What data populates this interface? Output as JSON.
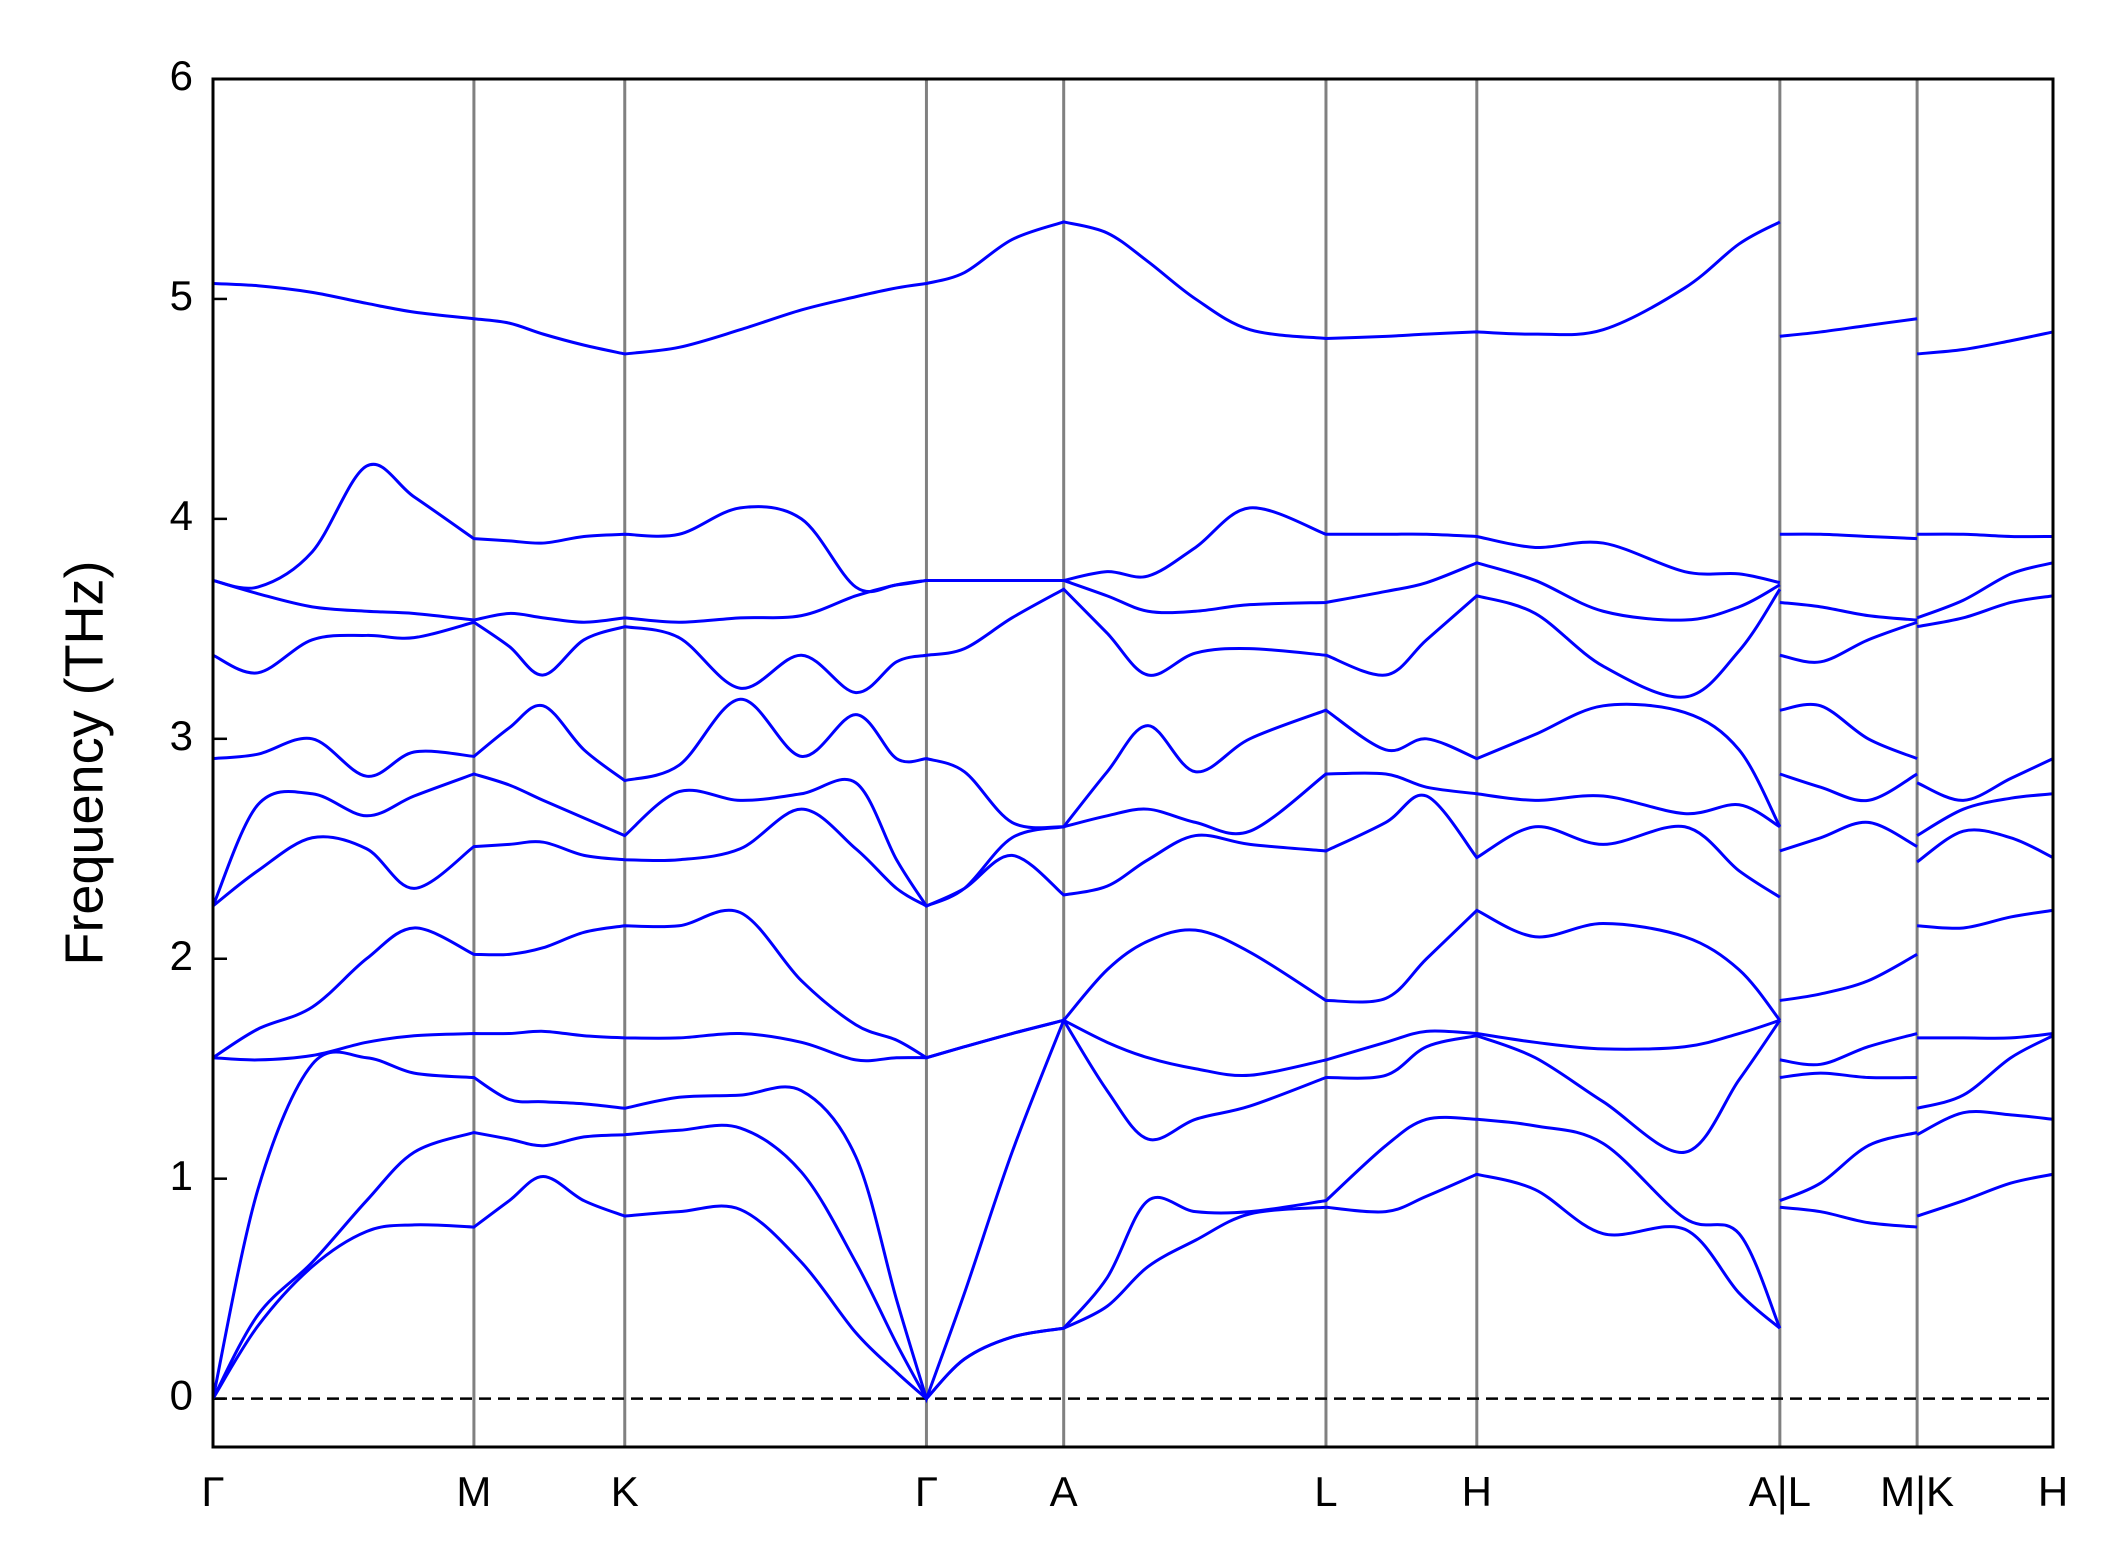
{
  "chart_data": {
    "type": "line",
    "ylabel": "Frequency (THz)",
    "color": "#0000ff",
    "hline": 0,
    "grid": true,
    "xlim": [
      0,
      13.54
    ],
    "ylim": [
      -0.22,
      6
    ],
    "yticks": [
      0,
      1,
      2,
      3,
      4,
      5,
      6
    ],
    "xticks": [
      {
        "value": 0,
        "label": "Γ"
      },
      {
        "value": 1.92,
        "label": "M"
      },
      {
        "value": 3.03,
        "label": "K"
      },
      {
        "value": 5.25,
        "label": "Γ"
      },
      {
        "value": 6.26,
        "label": "A"
      },
      {
        "value": 8.19,
        "label": "L"
      },
      {
        "value": 9.3,
        "label": "H"
      },
      {
        "value": 11.53,
        "label": "A|L"
      },
      {
        "value": 12.54,
        "label": "M|K"
      },
      {
        "value": 13.54,
        "label": "H"
      }
    ],
    "x": [
      0,
      0.33,
      0.73,
      1.13,
      1.48,
      1.92,
      2.18,
      2.43,
      2.73,
      3.03,
      3.43,
      3.88,
      4.33,
      4.73,
      5.03,
      5.25,
      5.53,
      5.88,
      6.26,
      6.58,
      6.88,
      7.23,
      7.63,
      8.19,
      8.63,
      8.93,
      9.3,
      9.73,
      10.23,
      10.83,
      11.23,
      11.53,
      11.53,
      11.53,
      11.83,
      12.18,
      12.54,
      12.54,
      12.54,
      12.88,
      13.23,
      13.54
    ],
    "series": [
      {
        "values": [
          0,
          0.33,
          0.6,
          0.76,
          0.79,
          0.78,
          0.9,
          1.01,
          0.9,
          0.83,
          0.85,
          0.86,
          0.62,
          0.3,
          0.12,
          0,
          0.18,
          0.28,
          0.32,
          0.42,
          0.6,
          0.72,
          0.84,
          0.87,
          0.85,
          0.92,
          1.02,
          0.95,
          0.75,
          0.77,
          0.48,
          0.32,
          null,
          0.87,
          0.85,
          0.8,
          0.78,
          null,
          0.83,
          0.9,
          0.98,
          1.02
        ]
      },
      {
        "values": [
          0,
          0.38,
          0.62,
          0.9,
          1.12,
          1.21,
          1.18,
          1.15,
          1.19,
          1.2,
          1.22,
          1.23,
          1.03,
          0.62,
          0.25,
          0,
          0.18,
          0.28,
          0.32,
          0.55,
          0.9,
          0.85,
          0.85,
          0.9,
          1.15,
          1.27,
          1.27,
          1.24,
          1.16,
          0.82,
          0.75,
          0.32,
          null,
          0.9,
          0.98,
          1.15,
          1.21,
          null,
          1.2,
          1.3,
          1.29,
          1.27
        ]
      },
      {
        "values": [
          0,
          0.95,
          1.52,
          1.55,
          1.48,
          1.46,
          1.36,
          1.35,
          1.34,
          1.32,
          1.37,
          1.38,
          1.4,
          1.1,
          0.45,
          0,
          0.48,
          1.12,
          1.72,
          1.4,
          1.18,
          1.27,
          1.33,
          1.46,
          1.47,
          1.6,
          1.65,
          1.55,
          1.35,
          1.12,
          1.45,
          1.72,
          null,
          1.46,
          1.48,
          1.46,
          1.46,
          null,
          1.32,
          1.38,
          1.55,
          1.65
        ]
      },
      {
        "values": [
          1.55,
          1.54,
          1.56,
          1.62,
          1.65,
          1.66,
          1.66,
          1.67,
          1.65,
          1.64,
          1.64,
          1.66,
          1.62,
          1.54,
          1.55,
          1.55,
          1.6,
          1.66,
          1.72,
          1.62,
          1.55,
          1.5,
          1.47,
          1.54,
          1.62,
          1.67,
          1.66,
          1.62,
          1.59,
          1.6,
          1.66,
          1.72,
          null,
          1.54,
          1.52,
          1.6,
          1.66,
          null,
          1.64,
          1.64,
          1.64,
          1.66
        ]
      },
      {
        "values": [
          1.55,
          1.68,
          1.78,
          2.0,
          2.14,
          2.02,
          2.02,
          2.05,
          2.12,
          2.15,
          2.15,
          2.21,
          1.9,
          1.7,
          1.63,
          1.55,
          1.6,
          1.66,
          1.72,
          1.95,
          2.08,
          2.13,
          2.03,
          1.81,
          1.82,
          2.0,
          2.22,
          2.1,
          2.16,
          2.1,
          1.95,
          1.72,
          null,
          1.81,
          1.84,
          1.9,
          2.02,
          null,
          2.15,
          2.14,
          2.19,
          2.22
        ]
      },
      {
        "values": [
          2.24,
          2.4,
          2.55,
          2.5,
          2.32,
          2.51,
          2.52,
          2.53,
          2.47,
          2.45,
          2.45,
          2.5,
          2.68,
          2.5,
          2.32,
          2.24,
          2.32,
          2.47,
          2.29,
          2.33,
          2.45,
          2.56,
          2.52,
          2.49,
          2.62,
          2.74,
          2.46,
          2.6,
          2.52,
          2.6,
          2.4,
          2.28,
          null,
          2.49,
          2.55,
          2.62,
          2.51,
          null,
          2.44,
          2.58,
          2.55,
          2.46
        ]
      },
      {
        "values": [
          2.24,
          2.7,
          2.75,
          2.65,
          2.74,
          2.84,
          2.79,
          2.72,
          2.64,
          2.56,
          2.76,
          2.72,
          2.75,
          2.8,
          2.45,
          2.24,
          2.32,
          2.55,
          2.6,
          2.65,
          2.68,
          2.62,
          2.58,
          2.84,
          2.84,
          2.78,
          2.75,
          2.72,
          2.74,
          2.66,
          2.7,
          2.6,
          null,
          2.84,
          2.78,
          2.72,
          2.84,
          null,
          2.56,
          2.68,
          2.73,
          2.75
        ]
      },
      {
        "values": [
          2.91,
          2.93,
          3.0,
          2.83,
          2.94,
          2.92,
          3.05,
          3.15,
          2.95,
          2.81,
          2.88,
          3.18,
          2.92,
          3.11,
          2.91,
          2.91,
          2.85,
          2.62,
          2.6,
          2.85,
          3.06,
          2.85,
          3.0,
          3.13,
          2.95,
          3.0,
          2.91,
          3.02,
          3.15,
          3.12,
          2.95,
          2.6,
          null,
          3.13,
          3.15,
          3.0,
          2.91,
          null,
          2.8,
          2.72,
          2.82,
          2.91
        ]
      },
      {
        "values": [
          3.38,
          3.3,
          3.45,
          3.47,
          3.46,
          3.53,
          3.42,
          3.29,
          3.45,
          3.51,
          3.46,
          3.23,
          3.38,
          3.21,
          3.35,
          3.38,
          3.41,
          3.55,
          3.68,
          3.48,
          3.29,
          3.39,
          3.41,
          3.38,
          3.29,
          3.45,
          3.65,
          3.57,
          3.33,
          3.19,
          3.4,
          3.68,
          null,
          3.38,
          3.35,
          3.45,
          3.53,
          null,
          3.51,
          3.55,
          3.62,
          3.65
        ]
      },
      {
        "values": [
          3.72,
          3.66,
          3.6,
          3.58,
          3.57,
          3.54,
          3.57,
          3.55,
          3.53,
          3.55,
          3.53,
          3.55,
          3.56,
          3.65,
          3.7,
          3.72,
          3.72,
          3.72,
          3.72,
          3.65,
          3.58,
          3.58,
          3.61,
          3.62,
          3.67,
          3.71,
          3.8,
          3.72,
          3.58,
          3.54,
          3.6,
          3.7,
          null,
          3.62,
          3.6,
          3.56,
          3.54,
          null,
          3.55,
          3.63,
          3.75,
          3.8
        ]
      },
      {
        "values": [
          3.72,
          3.69,
          3.85,
          4.24,
          4.1,
          3.91,
          3.9,
          3.89,
          3.92,
          3.93,
          3.93,
          4.05,
          4.0,
          3.69,
          3.7,
          3.72,
          3.72,
          3.72,
          3.72,
          3.76,
          3.74,
          3.87,
          4.05,
          3.93,
          3.93,
          3.93,
          3.92,
          3.87,
          3.89,
          3.76,
          3.75,
          3.71,
          null,
          3.93,
          3.93,
          3.92,
          3.91,
          null,
          3.93,
          3.93,
          3.92,
          3.92
        ]
      },
      {
        "values": [
          5.07,
          5.06,
          5.03,
          4.98,
          4.94,
          4.91,
          4.89,
          4.84,
          4.79,
          4.75,
          4.78,
          4.86,
          4.95,
          5.01,
          5.05,
          5.07,
          5.12,
          5.27,
          5.35,
          5.3,
          5.17,
          5.0,
          4.86,
          4.82,
          4.83,
          4.84,
          4.85,
          4.84,
          4.86,
          5.05,
          5.25,
          5.35,
          null,
          4.83,
          4.85,
          4.88,
          4.91,
          null,
          4.75,
          4.77,
          4.81,
          4.85
        ]
      }
    ]
  }
}
